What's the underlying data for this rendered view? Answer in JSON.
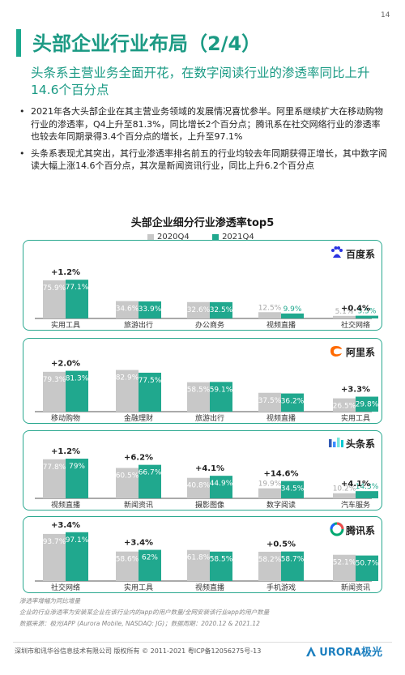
{
  "page_number": "14",
  "title": "头部企业行业布局（2/4）",
  "subtitle": "头条系主营业务全面开花，在数字阅读行业的渗透率同比上升14.6个百分点",
  "bullets": [
    "2021年各大头部企业在其主营业务领域的发展情况喜忧参半。阿里系继续扩大在移动购物行业的渗透率，Q4上升至81.3%，同比增长2个百分点；腾讯系在社交网络行业的渗透率也较去年同期录得3.4个百分点的增长，上升至97.1%",
    "头条系表现尤其突出，其行业渗透率排名前五的行业均较去年同期获得正增长，其中数字阅读大幅上涨14.6个百分点，其次是新闻资讯行业，同比上升6.2个百分点"
  ],
  "colors": {
    "accent": "#1ca98f",
    "bar_2020": "#c8c8c8",
    "bar_2021": "#20a88e",
    "label_2020": "#a9a9a9",
    "footer_logo": "#1c7fbf"
  },
  "chart_data": {
    "type": "bar",
    "title": "头部企业细分行业渗透率top5",
    "legend": [
      "2020Q4",
      "2021Q4"
    ],
    "legend_position": "top",
    "ylim": [
      0,
      100
    ],
    "unit": "%",
    "groups": [
      {
        "brand": "百度系",
        "brand_icon": "baidu-paw-icon",
        "categories": [
          "实用工具",
          "旅游出行",
          "办公商务",
          "视频直播",
          "社交网络"
        ],
        "series": [
          {
            "name": "2020Q4",
            "values": [
              75.9,
              34.6,
              32.6,
              12.5,
              5.1
            ]
          },
          {
            "name": "2021Q4",
            "values": [
              77.1,
              33.9,
              32.5,
              9.9,
              5.5
            ]
          }
        ],
        "changes": [
          "+1.2%",
          "",
          "",
          "",
          "+0.4%"
        ]
      },
      {
        "brand": "阿里系",
        "brand_icon": "alibaba-logo-icon",
        "categories": [
          "移动购物",
          "金融理财",
          "旅游出行",
          "视频直播",
          "实用工具"
        ],
        "series": [
          {
            "name": "2020Q4",
            "values": [
              79.3,
              82.9,
              58.5,
              37.5,
              26.5
            ]
          },
          {
            "name": "2021Q4",
            "values": [
              81.3,
              77.5,
              59.1,
              36.2,
              29.8
            ]
          }
        ],
        "changes": [
          "+2.0%",
          "",
          "",
          "",
          "+3.3%"
        ]
      },
      {
        "brand": "头条系",
        "brand_icon": "bytedance-logo-icon",
        "categories": [
          "视频直播",
          "新闻资讯",
          "摄影图像",
          "数字阅读",
          "汽车服务"
        ],
        "series": [
          {
            "name": "2020Q4",
            "values": [
              77.8,
              60.5,
              40.8,
              19.9,
              10.2
            ]
          },
          {
            "name": "2021Q4",
            "values": [
              79.0,
              66.7,
              44.9,
              34.5,
              14.3
            ]
          }
        ],
        "changes": [
          "+1.2%",
          "+6.2%",
          "+4.1%",
          "+14.6%",
          "+4.1%"
        ]
      },
      {
        "brand": "腾讯系",
        "brand_icon": "tencent-logo-icon",
        "categories": [
          "社交网络",
          "实用工具",
          "视频直播",
          "手机游戏",
          "新闻资讯"
        ],
        "series": [
          {
            "name": "2020Q4",
            "values": [
              93.7,
              58.6,
              61.8,
              58.2,
              52.1
            ]
          },
          {
            "name": "2021Q4",
            "values": [
              97.1,
              62.0,
              58.5,
              58.7,
              50.7
            ]
          }
        ],
        "changes": [
          "+3.4%",
          "+3.4%",
          "",
          "+0.5%",
          ""
        ]
      }
    ]
  },
  "footnotes": [
    "渗透率增幅为同比增量",
    "企业的行业渗透率为安装某企业在该行业内的app的用户数量/全网安装该行业app的用户数量",
    "数据来源：极光iAPP (Aurora Mobile, NASDAQ: JG)；数据周期：2020.12 & 2021.12"
  ],
  "footer": {
    "copyright": "深圳市和讯华谷信息技术有限公司 版权所有 © 2011-2021 粤ICP备12056275号-13",
    "logo_text": "URORA极光"
  }
}
